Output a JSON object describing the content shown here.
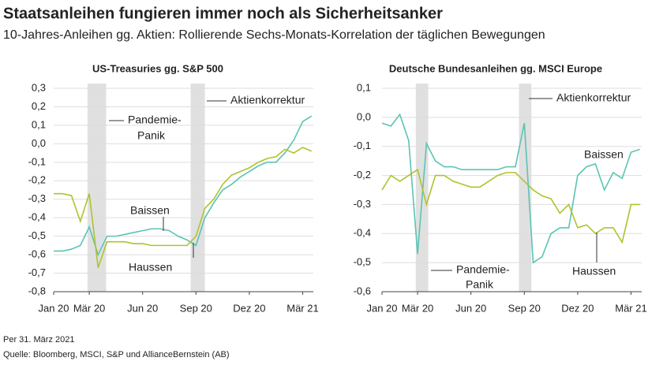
{
  "title": "Staatsanleihen fungieren immer noch als Sicherheitsanker",
  "subtitle": "10-Jahres-Anleihen gg. Aktien: Rollierende Sechs-Monats-Korrelation der täglichen Bewegungen",
  "footnotes": [
    "Per 31. März 2021",
    "Quelle: Bloomberg, MSCI, S&P und AllianceBernstein (AB)"
  ],
  "chart_data": [
    {
      "type": "line",
      "title": "US-Treasuries gg. S&P 500",
      "x": [
        0,
        0.5,
        1,
        1.5,
        2,
        2.5,
        3,
        3.5,
        4,
        4.5,
        5,
        5.5,
        6,
        6.5,
        7,
        7.5,
        8,
        8.5,
        9,
        9.5,
        10,
        10.5,
        11,
        11.5,
        12,
        12.5,
        13,
        13.5,
        14,
        14.5
      ],
      "xlim": [
        0,
        14.6
      ],
      "xticks": [
        {
          "value": 0,
          "label": "Jan 20"
        },
        {
          "value": 2,
          "label": "Mär 20"
        },
        {
          "value": 5,
          "label": "Jun 20"
        },
        {
          "value": 8,
          "label": "Sep 20"
        },
        {
          "value": 11,
          "label": "Dez 20"
        },
        {
          "value": 14,
          "label": "Mär 21"
        }
      ],
      "ylim": [
        -0.8,
        0.3
      ],
      "yticks": [
        {
          "value": 0.3,
          "label": "0,3"
        },
        {
          "value": 0.2,
          "label": "0,2"
        },
        {
          "value": 0.1,
          "label": "0,1"
        },
        {
          "value": 0,
          "label": "0,0"
        },
        {
          "value": -0.1,
          "label": "-0,1"
        },
        {
          "value": -0.2,
          "label": "-0,2"
        },
        {
          "value": -0.3,
          "label": "-0,3"
        },
        {
          "value": -0.4,
          "label": "-0,4"
        },
        {
          "value": -0.5,
          "label": "-0,5"
        },
        {
          "value": -0.6,
          "label": "-0,6"
        },
        {
          "value": -0.7,
          "label": "-0,7"
        },
        {
          "value": -0.8,
          "label": "-0,8"
        }
      ],
      "grid": true,
      "shaded_periods": [
        [
          1.9,
          2.95
        ],
        [
          7.7,
          8.5
        ]
      ],
      "annotations": [
        [
          "Pandemie-",
          "Panik"
        ],
        [
          "Aktienkorrektur"
        ]
      ],
      "series": [
        {
          "name": "Baissen",
          "color": "#5bc4b4",
          "values": [
            -0.58,
            -0.58,
            -0.57,
            -0.55,
            -0.45,
            -0.6,
            -0.5,
            -0.5,
            -0.49,
            -0.48,
            -0.47,
            -0.46,
            -0.46,
            -0.47,
            -0.5,
            -0.52,
            -0.55,
            -0.4,
            -0.32,
            -0.25,
            -0.22,
            -0.18,
            -0.15,
            -0.12,
            -0.1,
            -0.1,
            -0.05,
            0.02,
            0.12,
            0.15
          ]
        },
        {
          "name": "Haussen",
          "color": "#b0c22e",
          "values": [
            -0.27,
            -0.27,
            -0.28,
            -0.42,
            -0.27,
            -0.67,
            -0.53,
            -0.53,
            -0.53,
            -0.54,
            -0.54,
            -0.55,
            -0.55,
            -0.55,
            -0.55,
            -0.55,
            -0.5,
            -0.35,
            -0.3,
            -0.22,
            -0.17,
            -0.15,
            -0.13,
            -0.1,
            -0.08,
            -0.07,
            -0.03,
            -0.05,
            -0.02,
            -0.04
          ]
        }
      ]
    },
    {
      "type": "line",
      "title": "Deutsche Bundesanleihen gg. MSCI Europe",
      "x": [
        0,
        0.5,
        1,
        1.5,
        2,
        2.5,
        3,
        3.5,
        4,
        4.5,
        5,
        5.5,
        6,
        6.5,
        7,
        7.5,
        8,
        8.5,
        9,
        9.5,
        10,
        10.5,
        11,
        11.5,
        12,
        12.5,
        13,
        13.5,
        14,
        14.5
      ],
      "xlim": [
        0,
        14.6
      ],
      "xticks": [
        {
          "value": 0,
          "label": "Jan 20"
        },
        {
          "value": 2,
          "label": "Mär 20"
        },
        {
          "value": 5,
          "label": "Jun 20"
        },
        {
          "value": 8,
          "label": "Sep 20"
        },
        {
          "value": 11,
          "label": "Dez 20"
        },
        {
          "value": 14,
          "label": "Mär 21"
        }
      ],
      "ylim": [
        -0.6,
        0.1
      ],
      "yticks": [
        {
          "value": 0.1,
          "label": "0,1"
        },
        {
          "value": 0,
          "label": "0,0"
        },
        {
          "value": -0.1,
          "label": "-0,1"
        },
        {
          "value": -0.2,
          "label": "-0,2"
        },
        {
          "value": -0.3,
          "label": "-0,3"
        },
        {
          "value": -0.4,
          "label": "-0,4"
        },
        {
          "value": -0.5,
          "label": "-0,5"
        },
        {
          "value": -0.6,
          "label": "-0,6"
        }
      ],
      "grid": true,
      "shaded_periods": [
        [
          1.9,
          2.6
        ],
        [
          7.7,
          8.4
        ]
      ],
      "annotations": [
        [
          "Pandemie-",
          "Panik"
        ],
        [
          "Aktienkorrektur"
        ]
      ],
      "series": [
        {
          "name": "Baissen",
          "color": "#5bc4b4",
          "values": [
            -0.02,
            -0.03,
            0.01,
            -0.08,
            -0.47,
            -0.09,
            -0.15,
            -0.17,
            -0.17,
            -0.18,
            -0.18,
            -0.18,
            -0.18,
            -0.18,
            -0.17,
            -0.17,
            -0.02,
            -0.5,
            -0.48,
            -0.4,
            -0.38,
            -0.38,
            -0.2,
            -0.17,
            -0.16,
            -0.25,
            -0.19,
            -0.21,
            -0.12,
            -0.11
          ]
        },
        {
          "name": "Haussen",
          "color": "#b0c22e",
          "values": [
            -0.25,
            -0.2,
            -0.22,
            -0.2,
            -0.18,
            -0.3,
            -0.2,
            -0.2,
            -0.22,
            -0.23,
            -0.24,
            -0.24,
            -0.22,
            -0.2,
            -0.19,
            -0.19,
            -0.22,
            -0.25,
            -0.27,
            -0.28,
            -0.33,
            -0.3,
            -0.38,
            -0.37,
            -0.4,
            -0.38,
            -0.38,
            -0.43,
            -0.3,
            -0.3
          ]
        }
      ]
    }
  ]
}
